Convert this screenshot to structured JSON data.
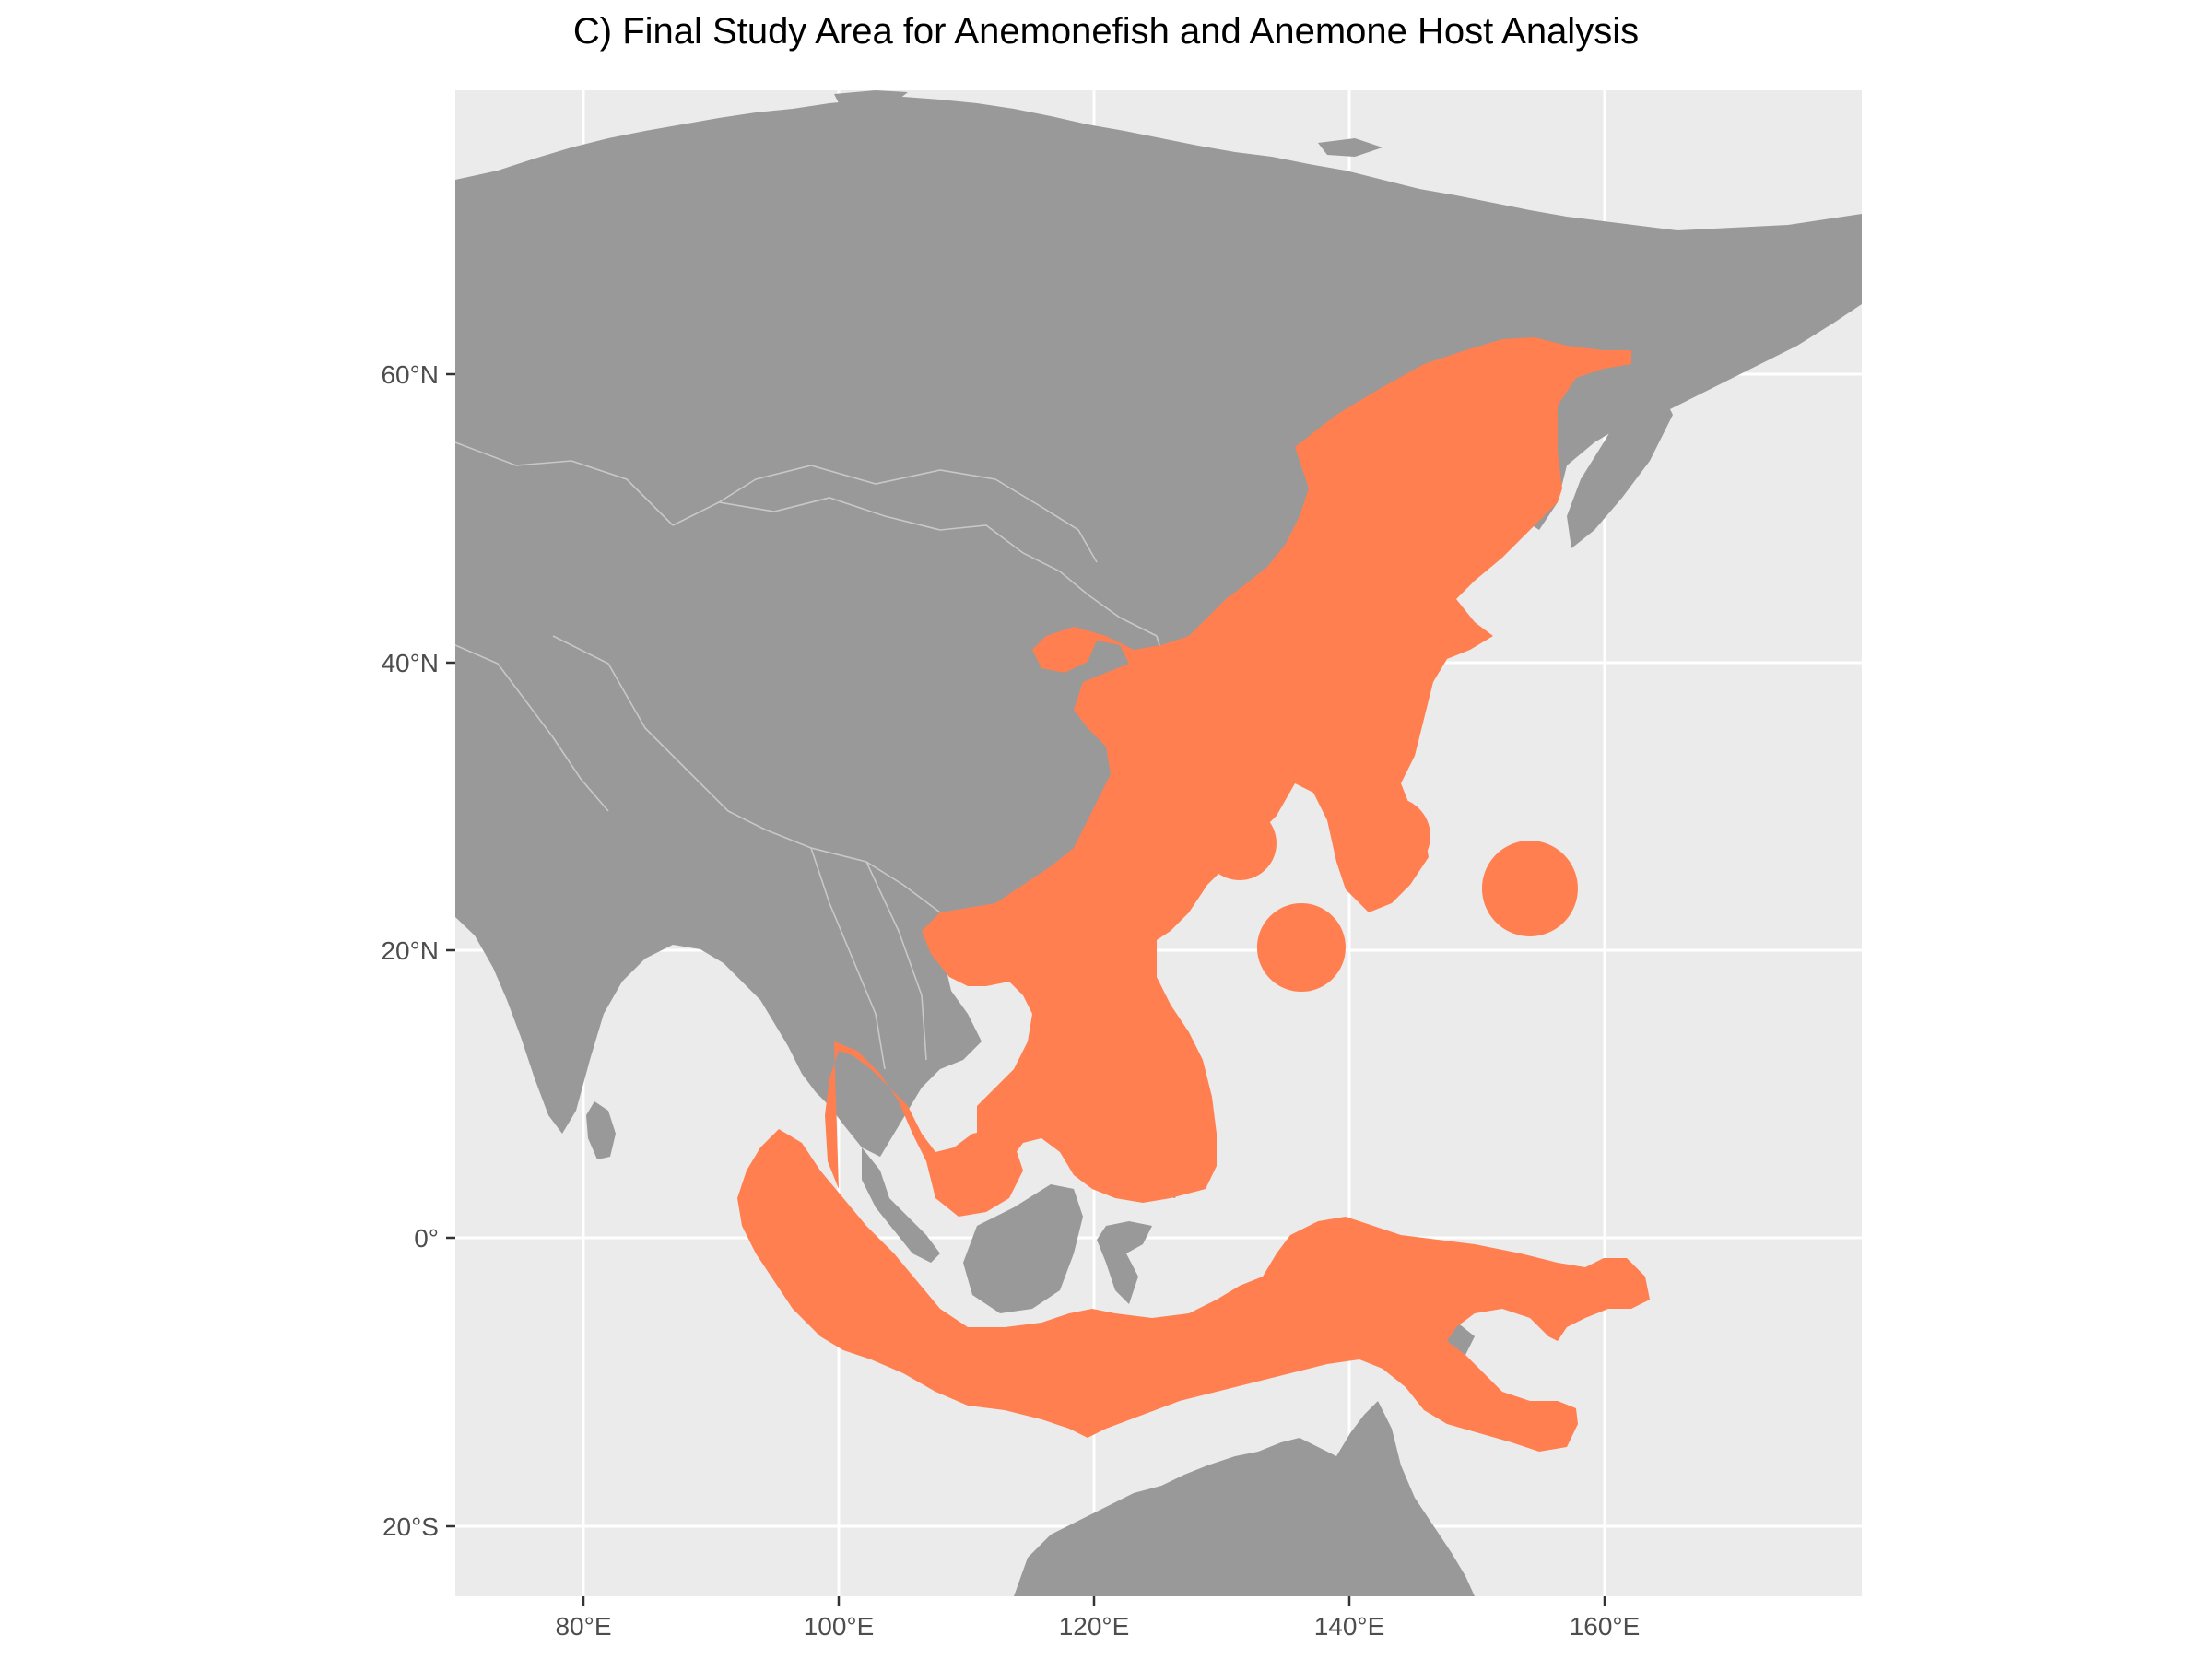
{
  "title": "C) Final Study Area for Anemonefish and Anemone Host Analysis",
  "map": {
    "projection": "equirectangular",
    "lon_range": [
      70,
      180
    ],
    "lat_range": [
      -25,
      78
    ],
    "lon_ticks": [
      {
        "value": 80,
        "label": "80°E"
      },
      {
        "value": 100,
        "label": "100°E"
      },
      {
        "value": 120,
        "label": "120°E"
      },
      {
        "value": 140,
        "label": "140°E"
      },
      {
        "value": 160,
        "label": "160°E"
      }
    ],
    "lat_ticks": [
      {
        "value": 60,
        "label": "60°N"
      },
      {
        "value": 40,
        "label": "40°N"
      },
      {
        "value": 20,
        "label": "20°N"
      },
      {
        "value": 0,
        "label": "0°"
      },
      {
        "value": -20,
        "label": "20°S"
      }
    ],
    "colors": {
      "panel_background": "#ebebeb",
      "grid": "#ffffff",
      "land": "#999999",
      "borders": "#c8c8c8",
      "study_area": "#ff7f50"
    },
    "grid": true,
    "layers": [
      "land",
      "country-borders",
      "study-area"
    ]
  }
}
